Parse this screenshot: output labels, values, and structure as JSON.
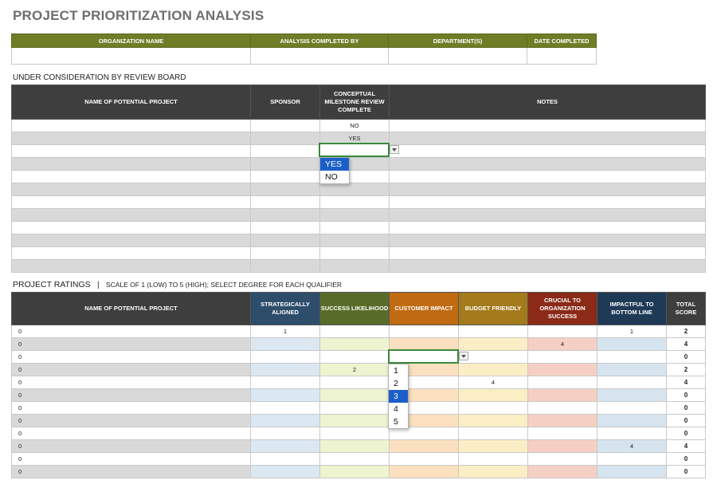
{
  "title": "PROJECT PRIORITIZATION ANALYSIS",
  "org_headers": [
    "ORGANIZATION NAME",
    "ANALYSIS COMPLETED BY",
    "DEPARTMENT(S)",
    "DATE COMPLETED"
  ],
  "review_section_label": "UNDER CONSIDERATION BY REVIEW BOARD",
  "review_headers": {
    "project": "NAME OF POTENTIAL PROJECT",
    "sponsor": "SPONSOR",
    "milestone": "CONCEPTUAL MILESTONE REVIEW COMPLETE",
    "notes": "NOTES"
  },
  "review_milestone_values": [
    "NO",
    "YES",
    "",
    "",
    "",
    "",
    "",
    "",
    "",
    "",
    "",
    ""
  ],
  "review_dropdown": {
    "options": [
      "YES",
      "NO"
    ],
    "selected": "YES"
  },
  "ratings_section_label": "PROJECT RATINGS",
  "ratings_section_separator": "|",
  "ratings_section_sub": "SCALE OF 1 (LOW) TO 5 (HIGH); SELECT DEGREE FOR EACH QUALIFIER",
  "ratings_headers": {
    "project": "NAME OF POTENTIAL PROJECT",
    "strategic": "STRATEGICALLY ALIGNED",
    "success": "SUCCESS LIKELIHOOD",
    "impact": "CUSTOMER IMPACT",
    "budget": "BUDGET FRIENDLY",
    "crucial": "CRUCIAL TO ORGANIZATION SUCCESS",
    "bottom": "IMPACTFUL TO BOTTOM LINE",
    "score": "TOTAL SCORE"
  },
  "ratings_rows": [
    {
      "name": "0",
      "strategic": "1",
      "success": "",
      "impact": "",
      "budget": "",
      "crucial": "",
      "bottom": "1",
      "score": "2"
    },
    {
      "name": "0",
      "strategic": "",
      "success": "",
      "impact": "",
      "budget": "",
      "crucial": "4",
      "bottom": "",
      "score": "4"
    },
    {
      "name": "0",
      "strategic": "",
      "success": "",
      "impact": "",
      "budget": "",
      "crucial": "",
      "bottom": "",
      "score": "0"
    },
    {
      "name": "0",
      "strategic": "",
      "success": "2",
      "impact": "",
      "budget": "",
      "crucial": "",
      "bottom": "",
      "score": "2"
    },
    {
      "name": "0",
      "strategic": "",
      "success": "",
      "impact": "",
      "budget": "4",
      "crucial": "",
      "bottom": "",
      "score": "4"
    },
    {
      "name": "0",
      "strategic": "",
      "success": "",
      "impact": "",
      "budget": "",
      "crucial": "",
      "bottom": "",
      "score": "0"
    },
    {
      "name": "0",
      "strategic": "",
      "success": "",
      "impact": "",
      "budget": "",
      "crucial": "",
      "bottom": "",
      "score": "0"
    },
    {
      "name": "0",
      "strategic": "",
      "success": "",
      "impact": "",
      "budget": "",
      "crucial": "",
      "bottom": "",
      "score": "0"
    },
    {
      "name": "0",
      "strategic": "",
      "success": "",
      "impact": "",
      "budget": "",
      "crucial": "",
      "bottom": "",
      "score": "0"
    },
    {
      "name": "0",
      "strategic": "",
      "success": "",
      "impact": "",
      "budget": "",
      "crucial": "",
      "bottom": "4",
      "score": "4"
    },
    {
      "name": "0",
      "strategic": "",
      "success": "",
      "impact": "",
      "budget": "",
      "crucial": "",
      "bottom": "",
      "score": "0"
    },
    {
      "name": "0",
      "strategic": "",
      "success": "",
      "impact": "",
      "budget": "",
      "crucial": "",
      "bottom": "",
      "score": "0"
    }
  ],
  "ratings_dropdown": {
    "options": [
      "1",
      "2",
      "3",
      "4",
      "5"
    ],
    "selected": "3"
  },
  "colors": {
    "org_header": "#6f7d27",
    "dark_header": "#3e3e3e",
    "strategic": "#2e4d6b",
    "success": "#586c29",
    "impact": "#c06a12",
    "budget": "#a37a1c",
    "crucial": "#8a2a17",
    "bottom": "#1f3a57",
    "selection": "#1a5fc9",
    "active_border": "#3a8a3a"
  }
}
